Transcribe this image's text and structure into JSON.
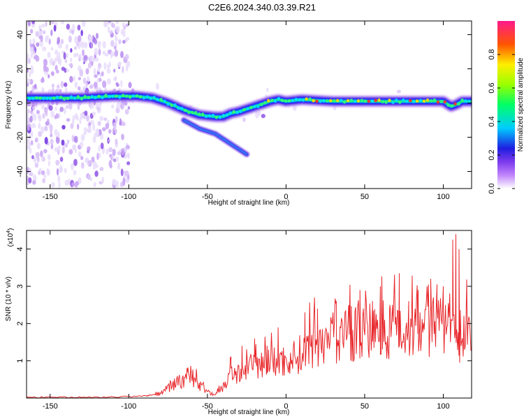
{
  "title": "C2E6.2024.340.03.39.R21",
  "chart_data": [
    {
      "type": "heatmap",
      "xlabel": "Height of straight line (km)",
      "ylabel": "Frequency (Hz)",
      "xlim": [
        -165,
        118
      ],
      "ylim": [
        -50,
        48
      ],
      "x_ticks": [
        -150,
        -100,
        -50,
        0,
        50,
        100
      ],
      "y_ticks": [
        -40,
        -20,
        0,
        20,
        40
      ],
      "colorbar": {
        "label": "Normalized spectral amplitude",
        "range": [
          0,
          1
        ],
        "ticks": [
          0.0,
          0.2,
          0.4,
          0.6,
          0.8
        ],
        "colormap": "rainbow"
      },
      "ridge_line": {
        "x": [
          -165,
          -150,
          -130,
          -110,
          -95,
          -85,
          -75,
          -65,
          -55,
          -45,
          -40,
          -35,
          -30,
          -20,
          -10,
          -5,
          0,
          10,
          30,
          50,
          70,
          90,
          100,
          105,
          108,
          112,
          118
        ],
        "y": [
          3,
          3,
          3,
          4,
          4,
          3,
          0,
          -4,
          -7,
          -8,
          -8,
          -6,
          -5,
          -2,
          1,
          2,
          1,
          2,
          1,
          1,
          1,
          1,
          1,
          -2,
          -1,
          1,
          1
        ]
      },
      "branch_line": {
        "x": [
          -65,
          -55,
          -45,
          -35,
          -25
        ],
        "y": [
          -10,
          -15,
          -18,
          -24,
          -30
        ]
      }
    },
    {
      "type": "line",
      "xlabel": "Height of straight line (km)",
      "ylabel": "SNR (10 * v/v)",
      "y_multiplier": "(x10",
      "y_multiplier_exp": "4",
      "y_multiplier_close": ")",
      "xlim": [
        -165,
        118
      ],
      "ylim": [
        0,
        4.5
      ],
      "x_ticks": [
        -150,
        -100,
        -50,
        0,
        50,
        100
      ],
      "y_ticks": [
        1,
        2,
        3,
        4
      ],
      "series": [
        {
          "color": "#e8272b",
          "envelope": {
            "x": [
              -165,
              -120,
              -90,
              -80,
              -72,
              -68,
              -60,
              -55,
              -50,
              -45,
              -40,
              -35,
              -30,
              -20,
              -10,
              0,
              10,
              20,
              30,
              40,
              50,
              60,
              70,
              80,
              90,
              100,
              105,
              108,
              110,
              112,
              118
            ],
            "y": [
              0.02,
              0.02,
              0.05,
              0.12,
              0.35,
              0.45,
              0.5,
              0.35,
              0.15,
              0.08,
              0.3,
              0.6,
              0.7,
              0.85,
              0.95,
              1.0,
              1.2,
              1.5,
              1.6,
              1.7,
              1.8,
              1.85,
              1.9,
              1.8,
              1.9,
              1.9,
              2.0,
              1.5,
              1.0,
              1.7,
              1.75
            ]
          },
          "spikes": [
            [
              -63,
              0.8
            ],
            [
              -35,
              1.1
            ],
            [
              -28,
              1.4
            ],
            [
              -20,
              1.6
            ],
            [
              -12,
              1.4
            ],
            [
              -5,
              1.9
            ],
            [
              12,
              2.3
            ],
            [
              20,
              2.4
            ],
            [
              32,
              2.6
            ],
            [
              40,
              2.5
            ],
            [
              47,
              2.9
            ],
            [
              55,
              2.6
            ],
            [
              60,
              3.0
            ],
            [
              66,
              2.5
            ],
            [
              72,
              3.35
            ],
            [
              78,
              2.6
            ],
            [
              84,
              2.9
            ],
            [
              92,
              3.2
            ],
            [
              96,
              3.05
            ],
            [
              100,
              3.0
            ],
            [
              106,
              4.25
            ],
            [
              108,
              4.4
            ],
            [
              110,
              4.0
            ]
          ]
        }
      ]
    }
  ]
}
